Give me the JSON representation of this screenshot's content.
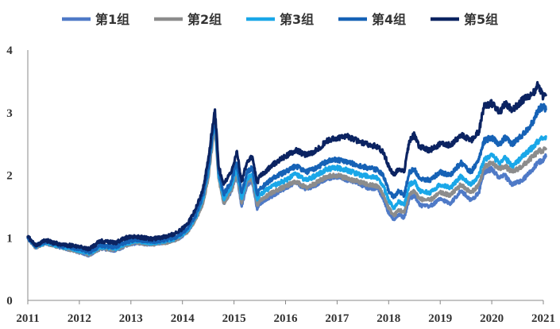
{
  "chart_data": {
    "type": "line",
    "title": "",
    "xlabel": "",
    "ylabel": "",
    "ylim": [
      0,
      4
    ],
    "yticks": [
      0,
      1,
      2,
      3,
      4
    ],
    "xlim": [
      2011,
      2021
    ],
    "xticks": [
      2011,
      2012,
      2013,
      2014,
      2015,
      2016,
      2017,
      2018,
      2019,
      2020,
      2021
    ],
    "grid": false,
    "legend_position": "top",
    "series": [
      {
        "name": "第1组",
        "color": "#4f7ac7",
        "x": [
          2011.0,
          2011.15,
          2011.35,
          2011.6,
          2011.9,
          2012.1,
          2012.2,
          2012.4,
          2012.7,
          2012.9,
          2013.1,
          2013.4,
          2013.7,
          2013.9,
          2014.1,
          2014.25,
          2014.4,
          2014.5,
          2014.58,
          2014.63,
          2014.7,
          2014.8,
          2014.95,
          2015.05,
          2015.15,
          2015.25,
          2015.35,
          2015.45,
          2015.5,
          2015.6,
          2015.8,
          2016.0,
          2016.2,
          2016.4,
          2016.6,
          2016.8,
          2017.0,
          2017.2,
          2017.4,
          2017.6,
          2017.8,
          2017.9,
          2018.0,
          2018.1,
          2018.2,
          2018.3,
          2018.4,
          2018.5,
          2018.6,
          2018.8,
          2019.0,
          2019.2,
          2019.4,
          2019.6,
          2019.75,
          2019.85,
          2020.0,
          2020.15,
          2020.25,
          2020.4,
          2020.6,
          2020.8,
          2020.9,
          2021.0,
          2021.05
        ],
        "values": [
          1.0,
          0.85,
          0.92,
          0.86,
          0.8,
          0.75,
          0.72,
          0.83,
          0.8,
          0.88,
          0.92,
          0.9,
          0.93,
          0.98,
          1.1,
          1.3,
          1.6,
          2.0,
          2.55,
          2.85,
          2.0,
          1.55,
          1.75,
          2.0,
          1.5,
          1.85,
          1.9,
          1.45,
          1.55,
          1.6,
          1.7,
          1.8,
          1.88,
          1.78,
          1.85,
          1.95,
          1.98,
          1.92,
          1.88,
          1.8,
          1.78,
          1.62,
          1.4,
          1.3,
          1.38,
          1.32,
          1.62,
          1.68,
          1.52,
          1.5,
          1.62,
          1.55,
          1.75,
          1.6,
          1.72,
          2.05,
          2.1,
          1.95,
          2.0,
          1.85,
          1.92,
          2.1,
          2.2,
          2.25,
          2.3
        ]
      },
      {
        "name": "第2组",
        "color": "#8c8c8c",
        "x": [
          2011.0,
          2011.15,
          2011.35,
          2011.6,
          2011.9,
          2012.1,
          2012.2,
          2012.4,
          2012.7,
          2012.9,
          2013.1,
          2013.4,
          2013.7,
          2013.9,
          2014.1,
          2014.25,
          2014.4,
          2014.5,
          2014.58,
          2014.63,
          2014.7,
          2014.8,
          2014.95,
          2015.05,
          2015.15,
          2015.25,
          2015.35,
          2015.45,
          2015.5,
          2015.6,
          2015.8,
          2016.0,
          2016.2,
          2016.4,
          2016.6,
          2016.8,
          2017.0,
          2017.2,
          2017.4,
          2017.6,
          2017.8,
          2017.9,
          2018.0,
          2018.1,
          2018.2,
          2018.3,
          2018.4,
          2018.5,
          2018.6,
          2018.8,
          2019.0,
          2019.2,
          2019.4,
          2019.6,
          2019.75,
          2019.85,
          2020.0,
          2020.15,
          2020.25,
          2020.4,
          2020.6,
          2020.8,
          2020.9,
          2021.0,
          2021.05
        ],
        "values": [
          1.0,
          0.85,
          0.92,
          0.86,
          0.8,
          0.76,
          0.73,
          0.84,
          0.81,
          0.89,
          0.93,
          0.9,
          0.93,
          0.98,
          1.1,
          1.28,
          1.55,
          1.95,
          2.5,
          2.78,
          1.95,
          1.55,
          1.75,
          2.05,
          1.55,
          1.9,
          1.95,
          1.52,
          1.6,
          1.65,
          1.75,
          1.82,
          1.9,
          1.8,
          1.88,
          1.98,
          2.0,
          1.95,
          1.9,
          1.85,
          1.82,
          1.68,
          1.48,
          1.35,
          1.45,
          1.4,
          1.7,
          1.75,
          1.62,
          1.6,
          1.72,
          1.68,
          1.85,
          1.72,
          1.85,
          2.12,
          2.2,
          2.1,
          2.15,
          2.05,
          2.15,
          2.3,
          2.38,
          2.4,
          2.42
        ]
      },
      {
        "name": "第3组",
        "color": "#1aa7e8",
        "x": [
          2011.0,
          2011.15,
          2011.35,
          2011.6,
          2011.9,
          2012.1,
          2012.2,
          2012.4,
          2012.7,
          2012.9,
          2013.1,
          2013.4,
          2013.7,
          2013.9,
          2014.1,
          2014.25,
          2014.4,
          2014.5,
          2014.58,
          2014.63,
          2014.7,
          2014.8,
          2014.95,
          2015.05,
          2015.15,
          2015.25,
          2015.35,
          2015.45,
          2015.5,
          2015.6,
          2015.8,
          2016.0,
          2016.2,
          2016.4,
          2016.6,
          2016.8,
          2017.0,
          2017.2,
          2017.4,
          2017.6,
          2017.8,
          2017.9,
          2018.0,
          2018.1,
          2018.2,
          2018.3,
          2018.4,
          2018.5,
          2018.6,
          2018.8,
          2019.0,
          2019.2,
          2019.4,
          2019.6,
          2019.75,
          2019.85,
          2020.0,
          2020.15,
          2020.25,
          2020.4,
          2020.6,
          2020.8,
          2020.9,
          2021.0,
          2021.05
        ],
        "values": [
          1.0,
          0.86,
          0.93,
          0.87,
          0.82,
          0.78,
          0.75,
          0.86,
          0.83,
          0.91,
          0.95,
          0.92,
          0.95,
          1.0,
          1.12,
          1.32,
          1.62,
          2.05,
          2.6,
          2.9,
          2.02,
          1.62,
          1.82,
          2.12,
          1.62,
          1.95,
          2.02,
          1.6,
          1.68,
          1.75,
          1.85,
          1.92,
          2.02,
          1.92,
          2.0,
          2.1,
          2.12,
          2.08,
          2.02,
          1.98,
          1.95,
          1.82,
          1.6,
          1.48,
          1.58,
          1.52,
          1.85,
          1.9,
          1.75,
          1.72,
          1.85,
          1.8,
          1.98,
          1.85,
          2.0,
          2.25,
          2.32,
          2.2,
          2.28,
          2.15,
          2.3,
          2.45,
          2.55,
          2.6,
          2.62
        ]
      },
      {
        "name": "第4组",
        "color": "#1662b6",
        "x": [
          2011.0,
          2011.15,
          2011.35,
          2011.6,
          2011.9,
          2012.1,
          2012.2,
          2012.4,
          2012.7,
          2012.9,
          2013.1,
          2013.4,
          2013.7,
          2013.9,
          2014.1,
          2014.25,
          2014.4,
          2014.5,
          2014.58,
          2014.63,
          2014.7,
          2014.8,
          2014.95,
          2015.05,
          2015.15,
          2015.25,
          2015.35,
          2015.45,
          2015.5,
          2015.6,
          2015.8,
          2016.0,
          2016.2,
          2016.4,
          2016.6,
          2016.8,
          2017.0,
          2017.2,
          2017.4,
          2017.6,
          2017.8,
          2017.9,
          2018.0,
          2018.1,
          2018.2,
          2018.3,
          2018.4,
          2018.5,
          2018.6,
          2018.8,
          2019.0,
          2019.2,
          2019.4,
          2019.6,
          2019.75,
          2019.85,
          2020.0,
          2020.15,
          2020.25,
          2020.4,
          2020.6,
          2020.8,
          2020.9,
          2021.0,
          2021.05
        ],
        "values": [
          1.0,
          0.87,
          0.94,
          0.88,
          0.84,
          0.8,
          0.77,
          0.88,
          0.85,
          0.93,
          0.97,
          0.94,
          0.97,
          1.02,
          1.15,
          1.35,
          1.68,
          2.1,
          2.65,
          2.98,
          2.08,
          1.7,
          1.9,
          2.2,
          1.72,
          2.05,
          2.12,
          1.7,
          1.78,
          1.85,
          1.98,
          2.05,
          2.15,
          2.05,
          2.12,
          2.22,
          2.25,
          2.22,
          2.15,
          2.12,
          2.08,
          1.98,
          1.75,
          1.65,
          1.75,
          1.68,
          2.05,
          2.1,
          1.95,
          1.92,
          2.05,
          2.0,
          2.2,
          2.05,
          2.25,
          2.55,
          2.6,
          2.48,
          2.6,
          2.5,
          2.65,
          2.85,
          3.05,
          3.1,
          3.05
        ]
      },
      {
        "name": "第5组",
        "color": "#0b2361",
        "x": [
          2011.0,
          2011.15,
          2011.35,
          2011.6,
          2011.9,
          2012.1,
          2012.2,
          2012.4,
          2012.7,
          2012.9,
          2013.1,
          2013.4,
          2013.7,
          2013.9,
          2014.1,
          2014.25,
          2014.4,
          2014.5,
          2014.58,
          2014.63,
          2014.7,
          2014.8,
          2014.95,
          2015.05,
          2015.15,
          2015.25,
          2015.35,
          2015.45,
          2015.5,
          2015.6,
          2015.8,
          2016.0,
          2016.2,
          2016.4,
          2016.6,
          2016.8,
          2017.0,
          2017.2,
          2017.4,
          2017.6,
          2017.8,
          2017.9,
          2018.0,
          2018.1,
          2018.2,
          2018.3,
          2018.4,
          2018.5,
          2018.6,
          2018.8,
          2019.0,
          2019.2,
          2019.4,
          2019.6,
          2019.75,
          2019.85,
          2020.0,
          2020.15,
          2020.25,
          2020.4,
          2020.6,
          2020.8,
          2020.9,
          2021.0,
          2021.05
        ],
        "values": [
          1.02,
          0.88,
          0.96,
          0.9,
          0.87,
          0.84,
          0.82,
          0.95,
          0.92,
          1.0,
          1.02,
          0.98,
          1.02,
          1.08,
          1.22,
          1.45,
          1.78,
          2.25,
          2.75,
          3.05,
          2.15,
          1.85,
          2.05,
          2.38,
          1.9,
          2.2,
          2.3,
          1.88,
          1.98,
          2.05,
          2.2,
          2.3,
          2.4,
          2.32,
          2.4,
          2.55,
          2.6,
          2.62,
          2.55,
          2.5,
          2.45,
          2.35,
          2.15,
          2.0,
          2.1,
          2.05,
          2.55,
          2.65,
          2.45,
          2.4,
          2.5,
          2.48,
          2.65,
          2.55,
          2.7,
          3.1,
          3.15,
          3.0,
          3.15,
          3.05,
          3.2,
          3.3,
          3.45,
          3.25,
          3.28
        ]
      }
    ]
  }
}
